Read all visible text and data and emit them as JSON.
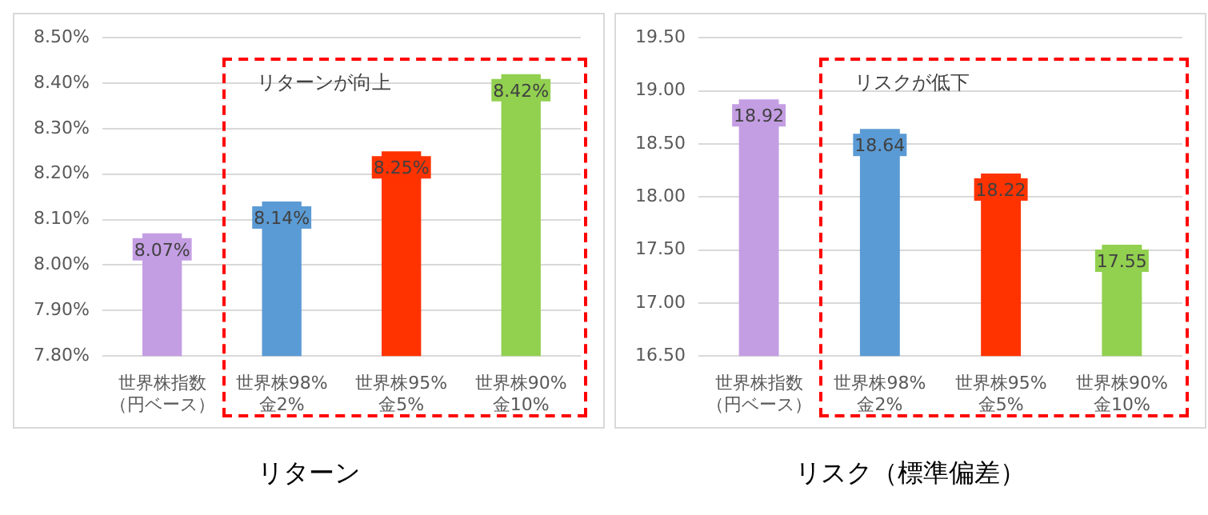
{
  "chart_data": [
    {
      "type": "bar",
      "title": "リターン",
      "categories": [
        "世界株指数（円ベース）",
        "世界株98%\n金2%",
        "世界株95%\n金5%",
        "世界株90%\n金10%"
      ],
      "values": [
        8.07,
        8.14,
        8.25,
        8.42
      ],
      "colors": [
        "#c49ee3",
        "#5b9bd5",
        "#ff3300",
        "#92d050"
      ],
      "value_labels": [
        "8.07%",
        "8.14%",
        "8.25%",
        "8.42%"
      ],
      "ylim": [
        7.8,
        8.5
      ],
      "yticks": [
        {
          "value": 7.8,
          "label": "7.80%"
        },
        {
          "value": 7.9,
          "label": "7.90%"
        },
        {
          "value": 8.0,
          "label": "8.00%"
        },
        {
          "value": 8.1,
          "label": "8.10%"
        },
        {
          "value": 8.2,
          "label": "8.20%"
        },
        {
          "value": 8.3,
          "label": "8.30%"
        },
        {
          "value": 8.4,
          "label": "8.40%"
        },
        {
          "value": 8.5,
          "label": "8.50%"
        }
      ],
      "grid": "y",
      "annotations": [
        "リターンが向上"
      ]
    },
    {
      "type": "bar",
      "title": "リスク（標準偏差）",
      "categories": [
        "世界株指数（円ベース）",
        "世界株98%\n金2%",
        "世界株95%\n金5%",
        "世界株90%\n金10%"
      ],
      "values": [
        18.92,
        18.64,
        18.22,
        17.55
      ],
      "colors": [
        "#c49ee3",
        "#5b9bd5",
        "#ff3300",
        "#92d050"
      ],
      "data_labels": true,
      "ylim": [
        16.5,
        19.5
      ],
      "yticks": [
        {
          "value": 16.5,
          "label": "16.50"
        },
        {
          "value": 17.0,
          "label": "17.00"
        },
        {
          "value": 17.5,
          "label": "17.50"
        },
        {
          "value": 18.0,
          "label": "18.00"
        },
        {
          "value": 18.5,
          "label": "18.50"
        },
        {
          "value": 19.0,
          "label": "19.00"
        },
        {
          "value": 19.5,
          "label": "19.50"
        }
      ],
      "grid": "y",
      "annotations": [
        "リスクが低下"
      ]
    }
  ]
}
